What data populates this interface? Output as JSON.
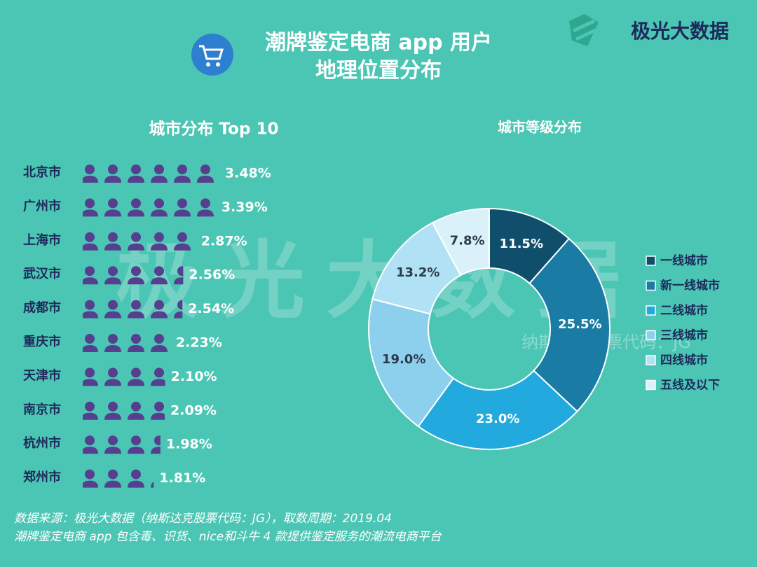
{
  "header": {
    "title": [
      "潮牌鉴定电商 app 用户",
      "地理位置分布"
    ],
    "brand": "极光大数据"
  },
  "watermark": [
    "极光大数据",
    "纳斯达克股票代码：JG"
  ],
  "footer": [
    "数据来源：极光大数据（纳斯达克股票代码：JG），取数周期：2019.04",
    "潮牌鉴定电商 app 包含毒、识货、nice和斗牛 4 款提供鉴定服务的潮流电商平台"
  ],
  "chart_data": [
    {
      "type": "pictogram",
      "title": "城市分布 Top 10",
      "categories": [
        "北京市",
        "广州市",
        "上海市",
        "武汉市",
        "成都市",
        "重庆市",
        "天津市",
        "南京市",
        "杭州市",
        "郑州市"
      ],
      "values": [
        3.48,
        3.39,
        2.87,
        2.56,
        2.54,
        2.23,
        2.1,
        2.09,
        1.98,
        1.81
      ],
      "value_labels": [
        "3.48%",
        "3.39%",
        "2.87%",
        "2.56%",
        "2.54%",
        "2.23%",
        "2.10%",
        "2.09%",
        "1.98%",
        "1.81%"
      ],
      "color": "#553f8e"
    },
    {
      "type": "donut",
      "title": "城市等级分布",
      "categories": [
        "一线城市",
        "新一线城市",
        "二线城市",
        "三线城市",
        "四线城市",
        "五线及以下"
      ],
      "values": [
        11.5,
        25.5,
        23.0,
        19.0,
        13.2,
        7.8
      ],
      "value_labels": [
        "11.5%",
        "25.5%",
        "23.0%",
        "19.0%",
        "13.2%",
        "7.8%"
      ],
      "colors": [
        "#0f4f6b",
        "#1a7ba5",
        "#22a9dd",
        "#8dd0ee",
        "#b0e1f4",
        "#daf1fa"
      ],
      "legend": "right"
    }
  ]
}
